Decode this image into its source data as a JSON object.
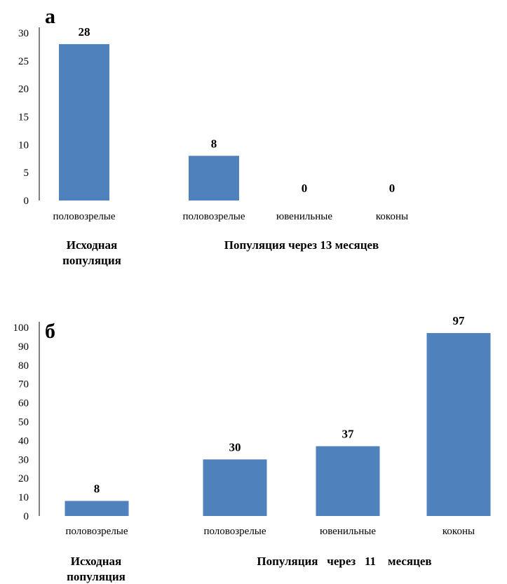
{
  "chart_data": [
    {
      "type": "bar",
      "panel_label": "а",
      "categories": [
        "половозрелые",
        "половозрелые",
        "ювенильные",
        "коконы"
      ],
      "values": [
        28,
        8,
        0,
        0
      ],
      "ylim": [
        0,
        30
      ],
      "yticks": [
        "0",
        "5",
        "10",
        "15",
        "20",
        "25",
        "30"
      ],
      "value_labels": [
        "28",
        "8",
        "0",
        "0"
      ],
      "group_labels": [
        {
          "lines": [
            "Исходная",
            "популяция"
          ]
        },
        {
          "lines": [
            "Популяция через 13 месяцев"
          ]
        }
      ],
      "bar_color": "#4f81bd",
      "grid": false
    },
    {
      "type": "bar",
      "panel_label": "б",
      "categories": [
        "половозрелые",
        "половозрелые",
        "ювенильные",
        "коконы"
      ],
      "values": [
        8,
        30,
        37,
        97
      ],
      "ylim": [
        0,
        100
      ],
      "yticks": [
        "0",
        "10",
        "20",
        "30",
        "40",
        "50",
        "60",
        "70",
        "80",
        "90",
        "100"
      ],
      "value_labels": [
        "8",
        "30",
        "37",
        "97"
      ],
      "group_labels": [
        {
          "lines": [
            "Исходная",
            "популяция"
          ]
        },
        {
          "lines": [
            "Популяция   через   11    месяцев"
          ]
        }
      ],
      "bar_color": "#4f81bd",
      "grid": false
    }
  ]
}
